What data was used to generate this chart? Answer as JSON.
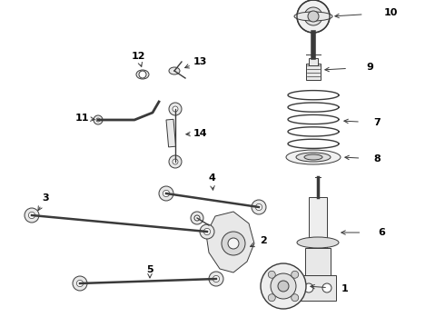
{
  "bg_color": "#ffffff",
  "line_color": "#3a3a3a",
  "label_color": "#000000",
  "fig_width": 4.9,
  "fig_height": 3.6,
  "dpi": 100
}
